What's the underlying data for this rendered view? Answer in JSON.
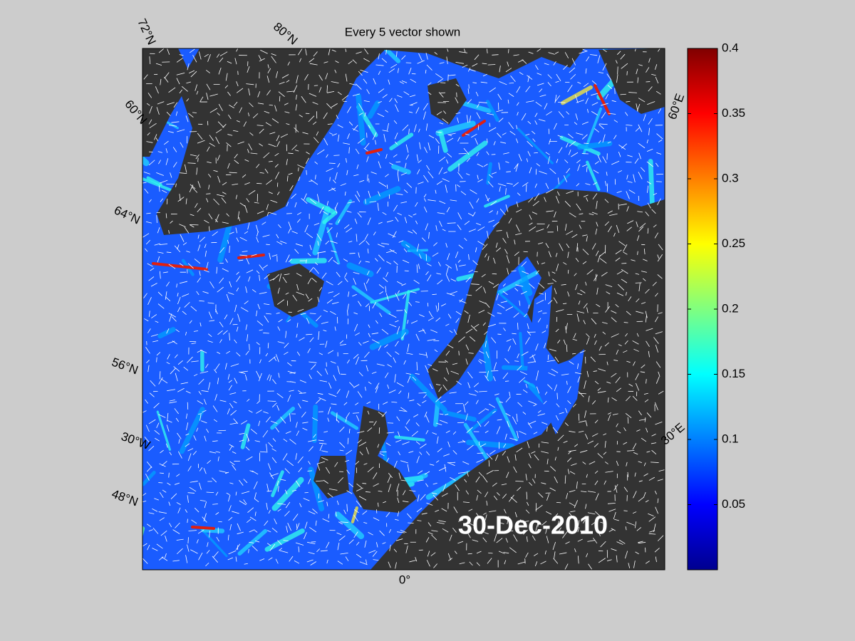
{
  "title": "Every 5 vector shown",
  "date_label": "30-Dec-2010",
  "graticule_labels": [
    "72°N",
    "80°N",
    "60°N",
    "64°N",
    "56°N",
    "30°W",
    "48°N",
    "0°",
    "60°E",
    "30°E"
  ],
  "colorbar": {
    "colormap": "jet",
    "lim": [
      0,
      0.4
    ],
    "ticks": [
      0.05,
      0.1,
      0.15,
      0.2,
      0.25,
      0.3,
      0.35,
      0.4
    ]
  }
}
